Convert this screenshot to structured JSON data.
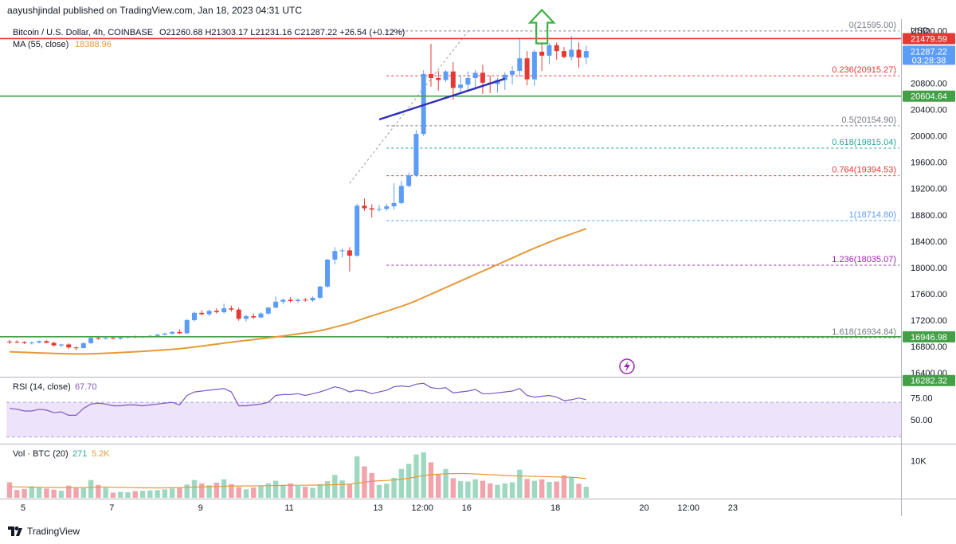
{
  "publisher_line": "aayushjindal published on TradingView.com, Jan 18, 2023 04:31 UTC",
  "watermark": "TradingView",
  "currency": "USD",
  "legend": {
    "symbol": "Bitcoin / U.S. Dollar, 4h, COINBASE",
    "ohlc": "O21260.68 H21303.17 L21231.16 C21287.22 +26.54 (+0.12%)",
    "ma_label": "MA (55, close)",
    "ma_value": "18388.96",
    "rsi_label": "RSI (14, close)",
    "rsi_value": "67.70",
    "vol_label": "Vol · BTC (20)",
    "vol_value": "271",
    "vol_ma_value": "5.2K"
  },
  "colors": {
    "up": "#5b9cf6",
    "down": "#e53935",
    "up_vol": "#9fd8c0",
    "down_vol": "#f2a3ab",
    "ma": "#e49a3a",
    "rsi": "#7e57c2",
    "rsi_band": "#ede4fb",
    "support_line": "#43a047",
    "resistance_line": "#e53935",
    "trendline": "#2f2fb8",
    "arrow": "#3cb043",
    "axis_text": "#131722"
  },
  "chart_data": {
    "type": "candlestick",
    "timeframe": "4h",
    "x_tick_labels": [
      "5",
      "7",
      "9",
      "11",
      "13",
      "12:00",
      "16",
      "18",
      "20",
      "12:00",
      "23"
    ],
    "x_tick_positions": [
      0,
      12,
      24,
      36,
      48,
      54,
      60,
      72,
      84,
      90,
      96
    ],
    "price_axis": {
      "range": [
        16400,
        21800
      ],
      "ticks": [
        21600,
        21200,
        20800,
        20400,
        20000,
        19600,
        19200,
        18800,
        18400,
        18000,
        17600,
        17200,
        16800,
        16400
      ],
      "tick_labels": [
        "21600.00",
        "21200.00",
        "20800.00",
        "20400.00",
        "20000.00",
        "19600.00",
        "19200.00",
        "18800.00",
        "18400.00",
        "18000.00",
        "17600.00",
        "17200.00",
        "16800.00",
        "16400.00"
      ]
    },
    "price_badges": [
      {
        "label": "21479.59",
        "value": 21479.59,
        "kind": "resistance"
      },
      {
        "label": "21287.22",
        "value": 21287.22,
        "kind": "last",
        "sub": "03:28:38"
      },
      {
        "label": "20604.64",
        "value": 20604.64,
        "kind": "support"
      },
      {
        "label": "16946.98",
        "value": 16946.98,
        "kind": "support"
      },
      {
        "label": "16282.32",
        "value": 16282.32,
        "kind": "ma"
      }
    ],
    "horizontal_levels": [
      {
        "value": 21479.59,
        "kind": "resistance"
      },
      {
        "value": 20604.64,
        "kind": "support"
      },
      {
        "value": 16946.98,
        "kind": "support"
      }
    ],
    "fibonacci": [
      {
        "label": "0(21595.00)",
        "value": 21595.0,
        "color": "#787b86"
      },
      {
        "label": "0.236(20915.27)",
        "value": 20915.27,
        "color": "#e53935"
      },
      {
        "label": "0.5(20154.90)",
        "value": 20154.9,
        "color": "#787b86"
      },
      {
        "label": "0.618(19815.04)",
        "value": 19815.04,
        "color": "#26a69a"
      },
      {
        "label": "0.764(19394.53)",
        "value": 19394.53,
        "color": "#e53935"
      },
      {
        "label": "1(18714.80)",
        "value": 18714.8,
        "color": "#5b9cf6"
      },
      {
        "label": "1.236(18035.07)",
        "value": 18035.07,
        "color": "#9c27b0"
      },
      {
        "label": "1.618(16934.84)",
        "value": 16934.84,
        "color": "#787b86"
      }
    ],
    "fib_start_index": 51,
    "trendline": {
      "from": {
        "index": 50,
        "price": 20250
      },
      "to": {
        "index": 67,
        "price": 20870
      }
    },
    "fib_diagonal": {
      "from": {
        "index": 46,
        "price": 19280
      },
      "to": {
        "index": 62,
        "price": 21590
      }
    },
    "breakout_arrow_index": 72,
    "candles": [
      [
        16875,
        16900,
        16840,
        16870
      ],
      [
        16870,
        16895,
        16850,
        16865
      ],
      [
        16865,
        16880,
        16835,
        16850
      ],
      [
        16850,
        16875,
        16830,
        16860
      ],
      [
        16860,
        16890,
        16845,
        16880
      ],
      [
        16880,
        16895,
        16850,
        16855
      ],
      [
        16855,
        16870,
        16800,
        16815
      ],
      [
        16815,
        16840,
        16790,
        16830
      ],
      [
        16830,
        16850,
        16760,
        16785
      ],
      [
        16785,
        16800,
        16740,
        16775
      ],
      [
        16775,
        16860,
        16770,
        16850
      ],
      [
        16850,
        16940,
        16840,
        16930
      ],
      [
        16930,
        16960,
        16900,
        16925
      ],
      [
        16925,
        16950,
        16905,
        16930
      ],
      [
        16930,
        16945,
        16910,
        16920
      ],
      [
        16920,
        16940,
        16900,
        16935
      ],
      [
        16935,
        16960,
        16920,
        16950
      ],
      [
        16950,
        16965,
        16925,
        16940
      ],
      [
        16940,
        16960,
        16925,
        16950
      ],
      [
        16950,
        16975,
        16935,
        16960
      ],
      [
        16960,
        16990,
        16950,
        16980
      ],
      [
        16980,
        17010,
        16965,
        16995
      ],
      [
        16995,
        17030,
        16980,
        17020
      ],
      [
        17020,
        17060,
        16990,
        17000
      ],
      [
        17000,
        17220,
        16990,
        17200
      ],
      [
        17200,
        17330,
        17180,
        17310
      ],
      [
        17310,
        17350,
        17270,
        17290
      ],
      [
        17290,
        17360,
        17260,
        17340
      ],
      [
        17340,
        17380,
        17300,
        17320
      ],
      [
        17320,
        17450,
        17300,
        17380
      ],
      [
        17380,
        17420,
        17330,
        17360
      ],
      [
        17360,
        17390,
        17190,
        17220
      ],
      [
        17220,
        17280,
        17180,
        17260
      ],
      [
        17260,
        17300,
        17220,
        17240
      ],
      [
        17240,
        17320,
        17230,
        17300
      ],
      [
        17300,
        17400,
        17280,
        17390
      ],
      [
        17390,
        17560,
        17380,
        17480
      ],
      [
        17480,
        17530,
        17440,
        17510
      ],
      [
        17510,
        17550,
        17470,
        17490
      ],
      [
        17490,
        17530,
        17460,
        17510
      ],
      [
        17510,
        17540,
        17480,
        17500
      ],
      [
        17500,
        17560,
        17480,
        17540
      ],
      [
        17540,
        17720,
        17520,
        17710
      ],
      [
        17710,
        18130,
        17690,
        18120
      ],
      [
        18120,
        18310,
        18050,
        18250
      ],
      [
        18250,
        18290,
        18150,
        18260
      ],
      [
        18260,
        18310,
        17940,
        18180
      ],
      [
        18180,
        18970,
        18160,
        18940
      ],
      [
        18940,
        19050,
        18860,
        18900
      ],
      [
        18900,
        18960,
        18760,
        18880
      ],
      [
        18880,
        18950,
        18850,
        18890
      ],
      [
        18890,
        18970,
        18860,
        18930
      ],
      [
        18930,
        19280,
        18880,
        18980
      ],
      [
        18980,
        19320,
        18960,
        19240
      ],
      [
        19240,
        19440,
        19220,
        19400
      ],
      [
        19400,
        20090,
        19380,
        20030
      ],
      [
        20030,
        21000,
        20000,
        20940
      ],
      [
        20940,
        21400,
        20750,
        20880
      ],
      [
        20880,
        20990,
        20690,
        20850
      ],
      [
        20850,
        21000,
        20820,
        20980
      ],
      [
        20980,
        21120,
        20550,
        20730
      ],
      [
        20730,
        20920,
        20660,
        20780
      ],
      [
        20780,
        20980,
        20690,
        20880
      ],
      [
        20880,
        21000,
        20700,
        20960
      ],
      [
        20960,
        21080,
        20640,
        20810
      ],
      [
        20810,
        20920,
        20650,
        20790
      ],
      [
        20790,
        20880,
        20660,
        20850
      ],
      [
        20850,
        20970,
        20700,
        20930
      ],
      [
        20930,
        21060,
        20780,
        20990
      ],
      [
        20990,
        21480,
        20900,
        21180
      ],
      [
        21180,
        21290,
        20770,
        20860
      ],
      [
        20860,
        21310,
        20760,
        21280
      ],
      [
        21280,
        21400,
        20990,
        21220
      ],
      [
        21220,
        21410,
        21090,
        21380
      ],
      [
        21380,
        21420,
        21160,
        21290
      ],
      [
        21290,
        21350,
        21180,
        21200
      ],
      [
        21200,
        21520,
        21150,
        21310
      ],
      [
        21310,
        21420,
        21040,
        21190
      ],
      [
        21190,
        21370,
        21090,
        21290
      ]
    ],
    "ma_55": [
      16720,
      16715,
      16710,
      16706,
      16702,
      16698,
      16694,
      16690,
      16688,
      16686,
      16686,
      16688,
      16692,
      16697,
      16702,
      16708,
      16714,
      16720,
      16726,
      16733,
      16740,
      16748,
      16756,
      16765,
      16778,
      16792,
      16806,
      16820,
      16835,
      16850,
      16865,
      16878,
      16891,
      16904,
      16917,
      16931,
      16945,
      16960,
      16975,
      16990,
      17005,
      17021,
      17040,
      17065,
      17094,
      17123,
      17152,
      17190,
      17228,
      17264,
      17300,
      17336,
      17372,
      17410,
      17450,
      17495,
      17545,
      17595,
      17645,
      17695,
      17745,
      17795,
      17845,
      17895,
      17945,
      17995,
      18045,
      18095,
      18145,
      18195,
      18245,
      18295,
      18340,
      18385,
      18430,
      18470,
      18510,
      18550,
      18590
    ],
    "rsi": {
      "range": [
        25,
        95
      ],
      "band": [
        30,
        70
      ],
      "ticks": [
        75,
        50
      ],
      "tick_labels": [
        "75.00",
        "50.00"
      ],
      "values": [
        63,
        62,
        60,
        60,
        62,
        61,
        58,
        59,
        55,
        55,
        63,
        68,
        69,
        68,
        66,
        66,
        67,
        67,
        66,
        67,
        68,
        69,
        70,
        67,
        78,
        82,
        83,
        84,
        85,
        86,
        82,
        66,
        66,
        67,
        68,
        70,
        78,
        79,
        79,
        80,
        78,
        80,
        82,
        85,
        88,
        86,
        82,
        84,
        83,
        80,
        82,
        84,
        88,
        89,
        88,
        91,
        92,
        87,
        86,
        87,
        81,
        82,
        83,
        85,
        80,
        80,
        81,
        82,
        83,
        86,
        78,
        76,
        77,
        78,
        76,
        72,
        73,
        75,
        73
      ]
    },
    "volume": {
      "range": [
        0,
        14000
      ],
      "ticks": [
        10000
      ],
      "tick_labels": [
        "10K"
      ],
      "values": [
        4200,
        2100,
        2400,
        3100,
        2800,
        2500,
        2200,
        1900,
        3300,
        2700,
        2600,
        4800,
        3500,
        2700,
        1400,
        1600,
        1500,
        1800,
        1900,
        2000,
        2100,
        2300,
        2500,
        2700,
        3600,
        4800,
        3900,
        3400,
        4100,
        5000,
        3700,
        2900,
        2300,
        2800,
        3100,
        3900,
        4600,
        3500,
        3900,
        3200,
        3000,
        2700,
        3700,
        4500,
        6200,
        4700,
        3600,
        11200,
        8500,
        6700,
        3500,
        3800,
        5400,
        7800,
        9200,
        11700,
        12300,
        9600,
        6300,
        7800,
        5300,
        4500,
        4400,
        5000,
        4600,
        3900,
        3500,
        3900,
        4200,
        7600,
        5100,
        4600,
        5000,
        4300,
        4400,
        6100,
        5700,
        3800,
        3000
      ],
      "ma": [
        3000,
        2950,
        2900,
        2900,
        2850,
        2800,
        2780,
        2750,
        2760,
        2760,
        2780,
        2850,
        2880,
        2900,
        2850,
        2800,
        2750,
        2720,
        2700,
        2690,
        2680,
        2690,
        2720,
        2760,
        2820,
        2900,
        2960,
        3000,
        3050,
        3120,
        3180,
        3200,
        3210,
        3230,
        3250,
        3280,
        3320,
        3350,
        3380,
        3400,
        3410,
        3420,
        3440,
        3480,
        3560,
        3620,
        3680,
        3950,
        4250,
        4500,
        4600,
        4700,
        4850,
        5050,
        5300,
        5650,
        6000,
        6250,
        6400,
        6500,
        6550,
        6580,
        6550,
        6450,
        6350,
        6250,
        6150,
        6050,
        5950,
        5900,
        5850,
        5800,
        5750,
        5700,
        5650,
        5600,
        5550,
        5400,
        5200
      ]
    }
  }
}
